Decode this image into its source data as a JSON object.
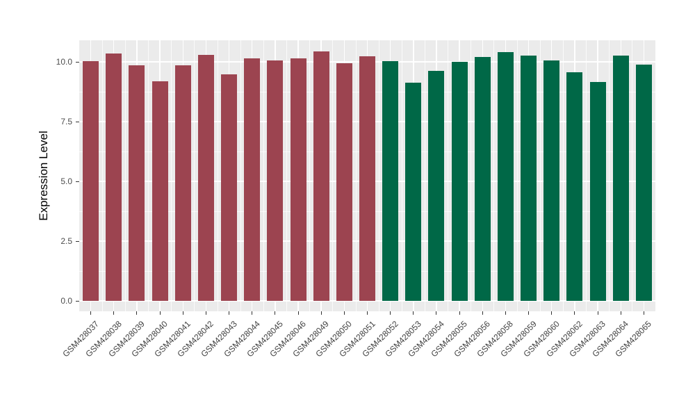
{
  "chart_data": {
    "type": "bar",
    "title": "",
    "xlabel": "",
    "ylabel": "Expression Level",
    "ylim": [
      0,
      10.9
    ],
    "yticks": [
      0,
      2.5,
      5,
      7.5,
      10
    ],
    "ytick_labels": [
      "0.0",
      "2.5",
      "5.0",
      "7.5",
      "10.0"
    ],
    "yminor_ticks": [
      1.25,
      3.75,
      6.25,
      8.75
    ],
    "grid": "major-and-minor-white-on-gray",
    "legend_position": "none",
    "categories": [
      "GSM428037",
      "GSM428038",
      "GSM428039",
      "GSM428040",
      "GSM428041",
      "GSM428042",
      "GSM428043",
      "GSM428044",
      "GSM428045",
      "GSM428046",
      "GSM428049",
      "GSM428050",
      "GSM428051",
      "GSM428052",
      "GSM428053",
      "GSM428054",
      "GSM428055",
      "GSM428056",
      "GSM428058",
      "GSM428059",
      "GSM428060",
      "GSM428062",
      "GSM428063",
      "GSM428064",
      "GSM428065"
    ],
    "values": [
      10.02,
      10.36,
      9.85,
      9.19,
      9.85,
      10.29,
      9.49,
      10.14,
      10.07,
      10.15,
      10.43,
      9.94,
      10.24,
      10.03,
      9.13,
      9.62,
      10.0,
      10.2,
      10.42,
      10.26,
      10.06,
      9.57,
      9.16,
      10.27,
      9.88
    ],
    "bar_groups": [
      {
        "name": "group-1",
        "color": "#9C4450",
        "first_index": 0,
        "last_index": 12
      },
      {
        "name": "group-2",
        "color": "#006847",
        "first_index": 13,
        "last_index": 24
      }
    ],
    "colors_per_bar": [
      "#9C4450",
      "#9C4450",
      "#9C4450",
      "#9C4450",
      "#9C4450",
      "#9C4450",
      "#9C4450",
      "#9C4450",
      "#9C4450",
      "#9C4450",
      "#9C4450",
      "#9C4450",
      "#9C4450",
      "#006847",
      "#006847",
      "#006847",
      "#006847",
      "#006847",
      "#006847",
      "#006847",
      "#006847",
      "#006847",
      "#006847",
      "#006847",
      "#006847"
    ]
  },
  "style": {
    "panel_background": "#EBEBEB",
    "grid_color": "#FFFFFF",
    "tick_label_color": "#4D4D4D",
    "axis_title_color": "#000000",
    "figure_background": "#FFFFFF"
  }
}
